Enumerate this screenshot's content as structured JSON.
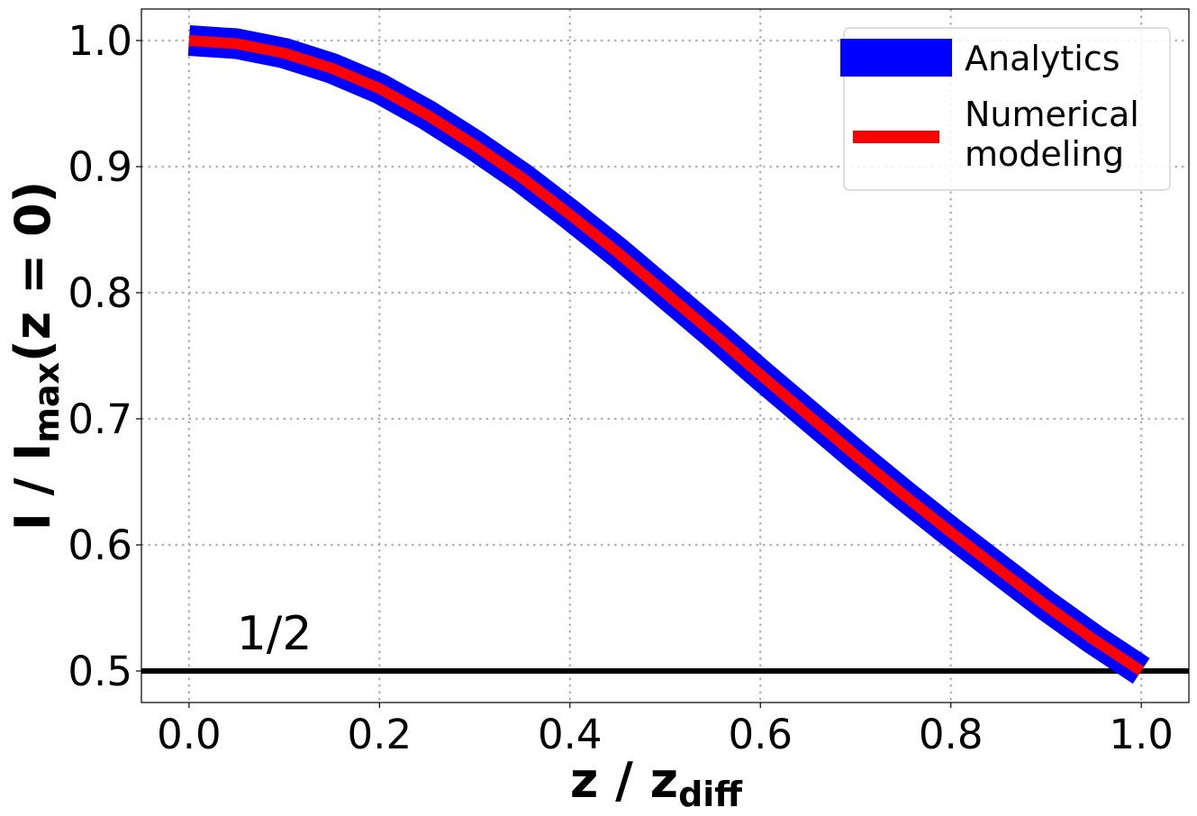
{
  "chart_data": {
    "type": "line",
    "x": [
      0.0,
      0.05,
      0.1,
      0.15,
      0.2,
      0.25,
      0.3,
      0.35,
      0.4,
      0.45,
      0.5,
      0.55,
      0.6,
      0.65,
      0.7,
      0.75,
      0.8,
      0.85,
      0.9,
      0.95,
      1.0
    ],
    "series": [
      {
        "name": "Analytics",
        "color": "#0000ff",
        "values": [
          1.0,
          0.9975,
          0.99,
          0.978,
          0.962,
          0.941,
          0.917,
          0.891,
          0.862,
          0.832,
          0.8,
          0.768,
          0.735,
          0.703,
          0.671,
          0.64,
          0.61,
          0.581,
          0.552,
          0.525,
          0.5
        ]
      },
      {
        "name": "Numerical\nmodeling",
        "color": "#ff0000",
        "values": [
          1.0,
          0.9975,
          0.99,
          0.978,
          0.962,
          0.941,
          0.917,
          0.891,
          0.862,
          0.832,
          0.8,
          0.768,
          0.735,
          0.703,
          0.671,
          0.64,
          0.61,
          0.581,
          0.552,
          0.525,
          0.5
        ]
      }
    ],
    "hline": {
      "y": 0.5,
      "color": "#000000"
    },
    "annotation": {
      "text": "1/2",
      "x": 0.05,
      "y": 0.53
    },
    "xlabel_main": "z / z",
    "xlabel_sub": "diff",
    "ylabel_main": "I / I",
    "ylabel_sub": "max",
    "ylabel_tail": "(z = 0)",
    "xlim": [
      -0.05,
      1.05
    ],
    "ylim": [
      0.475,
      1.025
    ],
    "xticks": [
      0.0,
      0.2,
      0.4,
      0.6,
      0.8,
      1.0
    ],
    "xtick_labels": [
      "0.0",
      "0.2",
      "0.4",
      "0.6",
      "0.8",
      "1.0"
    ],
    "yticks": [
      0.5,
      0.6,
      0.7,
      0.8,
      0.9,
      1.0
    ],
    "ytick_labels": [
      "0.5",
      "0.6",
      "0.7",
      "0.8",
      "0.9",
      "1.0"
    ],
    "grid": true,
    "legend_position": "top-right"
  }
}
